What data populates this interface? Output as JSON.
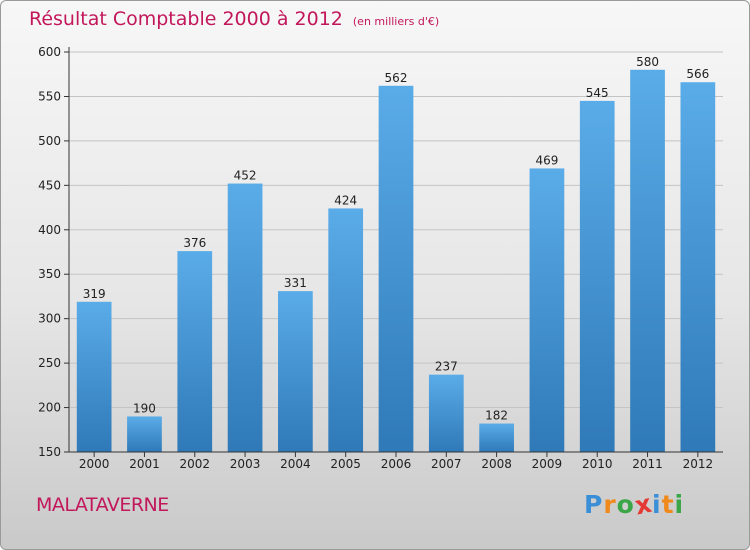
{
  "header": {
    "title": "Résultat Comptable 2000 à 2012",
    "unit": "(en milliers d'€)"
  },
  "commune": "MALATAVERNE",
  "brand": {
    "letters": [
      "P",
      "r",
      "o",
      "x",
      "i",
      "t",
      "i"
    ],
    "colors": [
      "#3b8fd6",
      "#f08a1c",
      "#3aa648",
      "#e53935",
      "#3b8fd6",
      "#f08a1c",
      "#3aa648"
    ]
  },
  "colors": {
    "bar_top": "#5aace8",
    "bar_bottom": "#2f79b8",
    "grid": "#c4c4c4",
    "axis": "#333333"
  },
  "chart_data": {
    "type": "bar",
    "title": "Résultat Comptable 2000 à 2012",
    "subtitle": "(en milliers d'€)",
    "xlabel": "",
    "ylabel": "",
    "categories": [
      "2000",
      "2001",
      "2002",
      "2003",
      "2004",
      "2005",
      "2006",
      "2007",
      "2008",
      "2009",
      "2010",
      "2011",
      "2012"
    ],
    "values": [
      319,
      190,
      376,
      452,
      331,
      424,
      562,
      237,
      182,
      469,
      545,
      580,
      566
    ],
    "ylim": [
      150,
      600
    ],
    "yticks": [
      150,
      200,
      250,
      300,
      350,
      400,
      450,
      500,
      550,
      600
    ],
    "grid": true,
    "data_labels": true
  }
}
